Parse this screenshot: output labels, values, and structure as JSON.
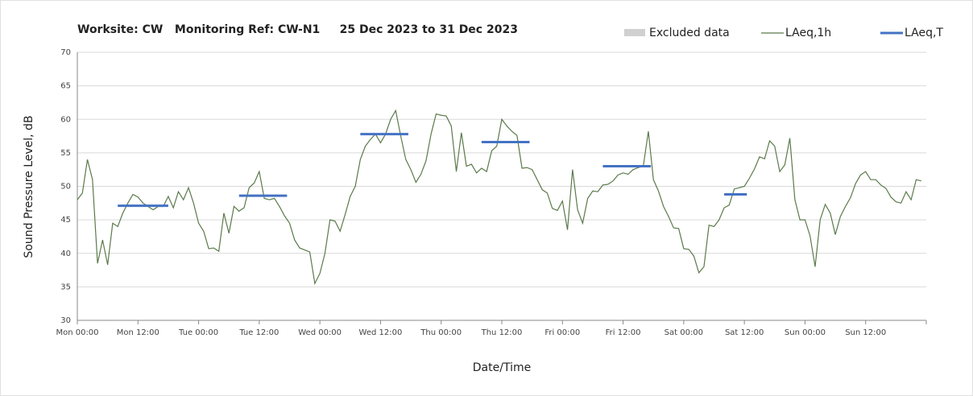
{
  "chart_data": {
    "type": "line",
    "title": "Worksite: CW   Monitoring Ref: CW-N1     25 Dec 2023 to 31 Dec 2023",
    "xlabel": "Date/Time",
    "ylabel": "Sound Pressure Level, dB",
    "xlim": [
      0,
      168
    ],
    "ylim": [
      30,
      70
    ],
    "yticks": [
      30,
      35,
      40,
      45,
      50,
      55,
      60,
      65,
      70
    ],
    "xticks": [
      {
        "value": 0,
        "label": "Mon 00:00"
      },
      {
        "value": 12,
        "label": "Mon 12:00"
      },
      {
        "value": 24,
        "label": "Tue 00:00"
      },
      {
        "value": 36,
        "label": "Tue 12:00"
      },
      {
        "value": 48,
        "label": "Wed 00:00"
      },
      {
        "value": 60,
        "label": "Wed 12:00"
      },
      {
        "value": 72,
        "label": "Thu 00:00"
      },
      {
        "value": 84,
        "label": "Thu 12:00"
      },
      {
        "value": 96,
        "label": "Fri 00:00"
      },
      {
        "value": 108,
        "label": "Fri 12:00"
      },
      {
        "value": 120,
        "label": "Sat 00:00"
      },
      {
        "value": 132,
        "label": "Sat 12:00"
      },
      {
        "value": 144,
        "label": "Sun 00:00"
      },
      {
        "value": 156,
        "label": "Sun 12:00"
      }
    ],
    "grid": true,
    "legend": [
      "Excluded data"
    ],
    "excluded_color": "#d0d0d0",
    "series": [
      {
        "name": "LAeq,1h",
        "color": "#5b7a4b",
        "x": [
          0,
          1,
          2,
          3,
          4,
          5,
          6,
          7,
          8,
          9,
          10,
          11,
          12,
          13,
          14,
          15,
          16,
          17,
          18,
          19,
          20,
          21,
          22,
          23,
          24,
          25,
          26,
          27,
          28,
          29,
          30,
          31,
          32,
          33,
          34,
          35,
          36,
          37,
          38,
          39,
          40,
          41,
          42,
          43,
          44,
          45,
          46,
          47,
          48,
          49,
          50,
          51,
          52,
          53,
          54,
          55,
          56,
          57,
          58,
          59,
          60,
          61,
          62,
          63,
          64,
          65,
          66,
          67,
          68,
          69,
          70,
          71,
          72,
          73,
          74,
          75,
          76,
          77,
          78,
          79,
          80,
          81,
          82,
          83,
          84,
          85,
          86,
          87,
          88,
          89,
          90,
          91,
          92,
          93,
          94,
          95,
          96,
          97,
          98,
          99,
          100,
          101,
          102,
          103,
          104,
          105,
          106,
          107,
          108,
          109,
          110,
          111,
          112,
          113,
          114,
          115,
          116,
          117,
          118,
          119,
          120,
          121,
          122,
          123,
          124,
          125,
          126,
          127,
          128,
          129,
          130,
          131,
          132,
          133,
          134,
          135,
          136,
          137,
          138,
          139,
          140,
          141,
          142,
          143,
          144,
          145,
          146,
          147,
          148,
          149,
          150,
          151,
          152,
          153,
          154,
          155,
          156,
          157,
          158,
          159,
          160,
          161,
          162,
          163,
          164,
          165,
          166,
          167
        ],
        "values": [
          48,
          49,
          54,
          51,
          38.5,
          42,
          38.3,
          44.5,
          44,
          46,
          47.5,
          48.8,
          48.4,
          47.5,
          47,
          46.5,
          47,
          47,
          48.5,
          46.8,
          49.2,
          48,
          49.8,
          47.5,
          44.5,
          43.3,
          40.7,
          40.8,
          40.3,
          46,
          43,
          47,
          46.3,
          46.8,
          49.8,
          50.5,
          52.2,
          48.2,
          48,
          48.2,
          47,
          45.6,
          44.5,
          42,
          40.8,
          40.5,
          40.2,
          35.5,
          37,
          40,
          45,
          44.8,
          43.3,
          45.8,
          48.5,
          50,
          54,
          56,
          57,
          57.8,
          56.5,
          57.8,
          60,
          61.3,
          57.5,
          54,
          52.5,
          50.6,
          51.8,
          53.8,
          57.8,
          60.8,
          60.6,
          60.5,
          59,
          52.2,
          58,
          53,
          53.3,
          52,
          52.7,
          52.2,
          55.3,
          56,
          60,
          59,
          58.2,
          57.6,
          52.7,
          52.8,
          52.5,
          51,
          49.5,
          49,
          46.7,
          46.4,
          47.8,
          43.5,
          52.5,
          46.5,
          44.5,
          48.2,
          49.3,
          49.2,
          50.2,
          50.3,
          50.8,
          51.7,
          52,
          51.8,
          52.5,
          52.8,
          53,
          58.2,
          51,
          49.3,
          47,
          45.5,
          43.8,
          43.7,
          40.7,
          40.6,
          39.6,
          37.1,
          38,
          44.2,
          44,
          45,
          46.8,
          47.2,
          49.6,
          49.8,
          50,
          51.2,
          52.6,
          54.4,
          54.1,
          56.8,
          56,
          52.2,
          53.2,
          57.2,
          48,
          45,
          45,
          42.6,
          38,
          45,
          47.3,
          46,
          42.8,
          45.5,
          47,
          48.3,
          50.4,
          51.7,
          52.2,
          51,
          51,
          50.2,
          49.7,
          48.4,
          47.7,
          47.5,
          49.2,
          48,
          51,
          50.8
        ]
      },
      {
        "name": "LAeq,T",
        "color": "#4472c4",
        "segments": [
          {
            "start": 8,
            "end": 18,
            "value": 47.1
          },
          {
            "start": 32,
            "end": 41.5,
            "value": 48.6
          },
          {
            "start": 56,
            "end": 65.5,
            "value": 57.8
          },
          {
            "start": 80,
            "end": 89.5,
            "value": 56.6
          },
          {
            "start": 104,
            "end": 113.5,
            "value": 53
          },
          {
            "start": 128,
            "end": 132.5,
            "value": 48.8
          }
        ]
      }
    ]
  }
}
